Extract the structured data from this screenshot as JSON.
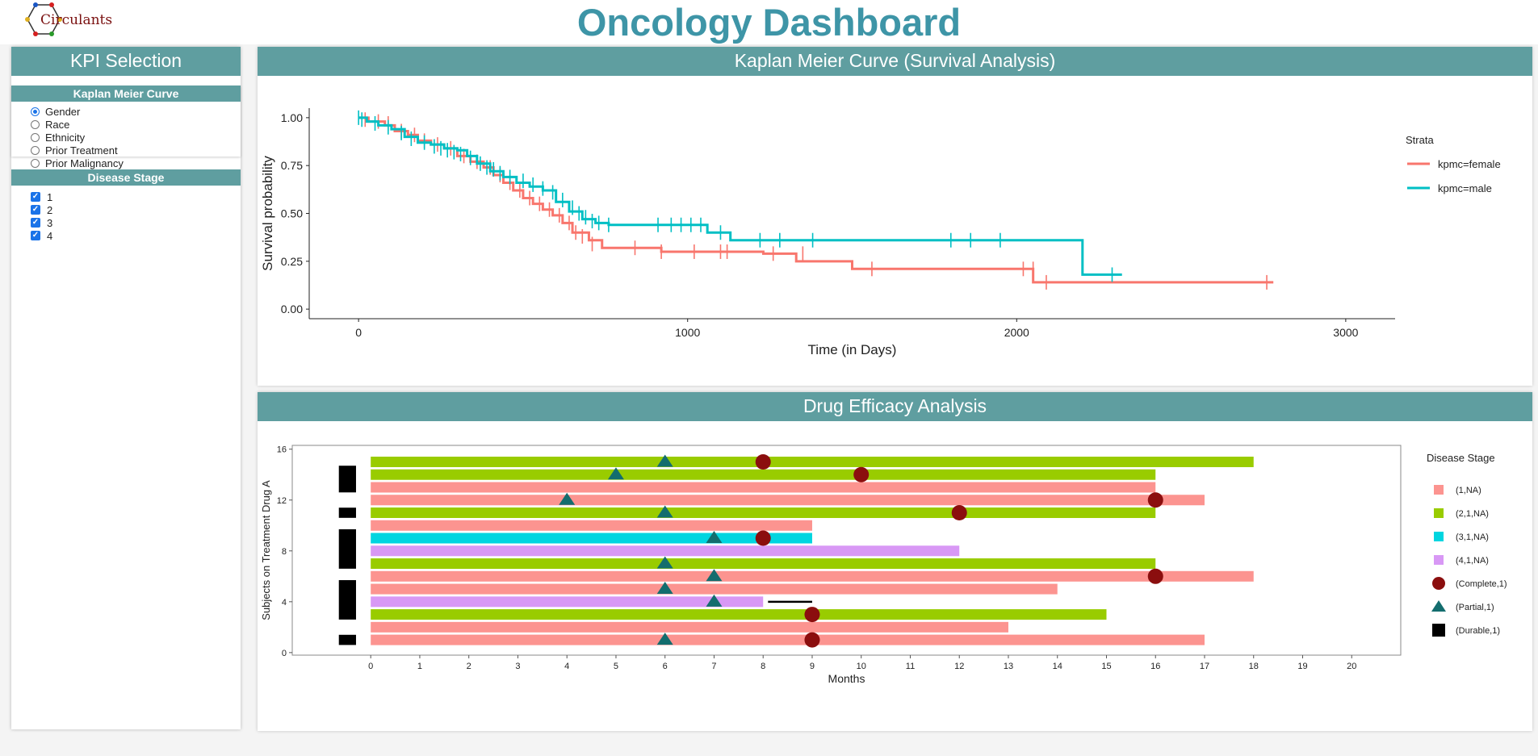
{
  "app": {
    "logo_text": "Circulants",
    "title": "Oncology Dashboard"
  },
  "sidebar": {
    "header": "KPI Selection",
    "km_section": {
      "title": "Kaplan Meier Curve",
      "options": [
        {
          "label": "Gender",
          "selected": true
        },
        {
          "label": "Race",
          "selected": false
        },
        {
          "label": "Ethnicity",
          "selected": false
        },
        {
          "label": "Prior Treatment",
          "selected": false
        },
        {
          "label": "Prior Malignancy",
          "selected": false
        }
      ]
    },
    "stage_section": {
      "title": "Disease Stage",
      "options": [
        {
          "label": "1",
          "checked": true
        },
        {
          "label": "2",
          "checked": true
        },
        {
          "label": "3",
          "checked": true
        },
        {
          "label": "4",
          "checked": true
        }
      ]
    }
  },
  "km_panel": {
    "title": "Kaplan Meier Curve (Survival Analysis)"
  },
  "drug_panel": {
    "title": "Drug Efficacy Analysis"
  },
  "colors": {
    "header_teal": "#5f9ea0",
    "title_teal": "#3e95a7",
    "female": "#f8766d",
    "male": "#00bfc4",
    "stage1": "#fc9490",
    "stage2": "#99cc00",
    "stage3": "#00d5e0",
    "stage4": "#d898f5",
    "complete": "#8b0e0e",
    "partial": "#136d6e",
    "durable": "#000000"
  },
  "chart_data": [
    {
      "type": "line",
      "chart": "km",
      "xlabel": "Time (in Days)",
      "ylabel": "Survival probability",
      "xlim": [
        -150,
        3150
      ],
      "ylim": [
        -0.05,
        1.05
      ],
      "xticks": [
        0,
        1000,
        2000,
        3000
      ],
      "yticks": [
        0.0,
        0.25,
        0.5,
        0.75,
        1.0
      ],
      "ytick_labels": [
        "0.00",
        "0.25",
        "0.50",
        "0.75",
        "1.00"
      ],
      "legend_title": "Strata",
      "legend_position": "right",
      "series": [
        {
          "name": "kpmc=female",
          "color_key": "female",
          "x": [
            0,
            30,
            80,
            110,
            150,
            180,
            220,
            260,
            300,
            340,
            380,
            410,
            440,
            470,
            500,
            530,
            560,
            590,
            620,
            650,
            700,
            740,
            920,
            1000,
            1230,
            1330,
            1500,
            1540,
            2020,
            2050,
            2780
          ],
          "y": [
            1.0,
            0.98,
            0.96,
            0.93,
            0.91,
            0.88,
            0.86,
            0.84,
            0.8,
            0.77,
            0.74,
            0.7,
            0.66,
            0.62,
            0.58,
            0.55,
            0.52,
            0.49,
            0.45,
            0.4,
            0.36,
            0.32,
            0.3,
            0.3,
            0.29,
            0.25,
            0.21,
            0.21,
            0.21,
            0.14,
            0.14
          ],
          "censor_x": [
            20,
            60,
            90,
            130,
            170,
            200,
            240,
            280,
            320,
            360,
            400,
            430,
            460,
            490,
            520,
            550,
            580,
            610,
            640,
            660,
            680,
            710,
            840,
            920,
            1020,
            1100,
            1120,
            1260,
            1350,
            1560,
            2020,
            2050,
            2090,
            2760
          ],
          "censor_y": [
            0.99,
            0.98,
            0.97,
            0.93,
            0.91,
            0.88,
            0.86,
            0.84,
            0.8,
            0.77,
            0.74,
            0.7,
            0.66,
            0.62,
            0.58,
            0.55,
            0.52,
            0.49,
            0.45,
            0.4,
            0.38,
            0.34,
            0.32,
            0.3,
            0.3,
            0.3,
            0.3,
            0.29,
            0.29,
            0.21,
            0.21,
            0.21,
            0.14,
            0.14
          ]
        },
        {
          "name": "kpmc=male",
          "color_key": "male",
          "x": [
            0,
            25,
            60,
            100,
            140,
            180,
            220,
            260,
            300,
            330,
            360,
            400,
            440,
            480,
            520,
            560,
            600,
            640,
            680,
            720,
            760,
            1000,
            1060,
            1130,
            1280,
            1500,
            1800,
            2000,
            2180,
            2200,
            2320
          ],
          "y": [
            1.0,
            0.98,
            0.96,
            0.94,
            0.9,
            0.87,
            0.86,
            0.84,
            0.83,
            0.8,
            0.76,
            0.72,
            0.69,
            0.66,
            0.64,
            0.62,
            0.56,
            0.51,
            0.47,
            0.45,
            0.44,
            0.44,
            0.4,
            0.36,
            0.36,
            0.36,
            0.36,
            0.36,
            0.36,
            0.18,
            0.18
          ],
          "censor_x": [
            0,
            10,
            50,
            90,
            130,
            160,
            200,
            230,
            250,
            270,
            290,
            310,
            340,
            370,
            390,
            410,
            430,
            460,
            500,
            530,
            560,
            590,
            620,
            650,
            670,
            690,
            710,
            730,
            760,
            910,
            950,
            980,
            1010,
            1040,
            1100,
            1220,
            1280,
            1380,
            1800,
            1860,
            1950,
            2290
          ],
          "censor_y": [
            1.0,
            0.99,
            0.97,
            0.95,
            0.92,
            0.89,
            0.87,
            0.85,
            0.84,
            0.83,
            0.82,
            0.81,
            0.79,
            0.76,
            0.74,
            0.73,
            0.71,
            0.69,
            0.67,
            0.65,
            0.63,
            0.61,
            0.57,
            0.53,
            0.5,
            0.48,
            0.46,
            0.45,
            0.44,
            0.44,
            0.44,
            0.44,
            0.44,
            0.44,
            0.4,
            0.36,
            0.36,
            0.36,
            0.36,
            0.36,
            0.36,
            0.18
          ]
        }
      ]
    },
    {
      "type": "bar",
      "chart": "swimmer",
      "xlabel": "Months",
      "ylabel": "Subjects on Treatment Drug A",
      "xlim": [
        -1.6,
        21.0
      ],
      "ylim": [
        -0.2,
        16.3
      ],
      "xticks": [
        0,
        1,
        2,
        3,
        4,
        5,
        6,
        7,
        8,
        9,
        10,
        11,
        12,
        13,
        14,
        15,
        16,
        17,
        18,
        19,
        20
      ],
      "yticks": [
        0,
        4,
        8,
        12,
        16
      ],
      "legend_title": "Disease Stage",
      "legend_position": "right",
      "legend": [
        {
          "label": "(1,NA)",
          "kind": "square",
          "color_key": "stage1"
        },
        {
          "label": "(2,1,NA)",
          "kind": "square",
          "color_key": "stage2"
        },
        {
          "label": "(3,1,NA)",
          "kind": "square",
          "color_key": "stage3"
        },
        {
          "label": "(4,1,NA)",
          "kind": "square",
          "color_key": "stage4"
        },
        {
          "label": "(Complete,1)",
          "kind": "circle",
          "color_key": "complete"
        },
        {
          "label": "(Partial,1)",
          "kind": "triangle",
          "color_key": "partial"
        },
        {
          "label": "(Durable,1)",
          "kind": "rect",
          "color_key": "durable"
        }
      ],
      "subjects": [
        {
          "y": 1,
          "end": 17,
          "stage": "stage1",
          "partial": [
            6
          ],
          "complete": [
            9
          ]
        },
        {
          "y": 2,
          "end": 13,
          "stage": "stage1",
          "partial": [],
          "complete": []
        },
        {
          "y": 3,
          "end": 15,
          "stage": "stage2",
          "partial": [],
          "complete": [
            9
          ]
        },
        {
          "y": 4,
          "end": 8,
          "stage": "stage4",
          "partial": [
            7
          ],
          "complete": [],
          "continuation": [
            8.1,
            9
          ]
        },
        {
          "y": 5,
          "end": 14,
          "stage": "stage1",
          "partial": [
            6
          ],
          "complete": []
        },
        {
          "y": 6,
          "end": 18,
          "stage": "stage1",
          "partial": [
            7
          ],
          "complete": [
            16
          ]
        },
        {
          "y": 7,
          "end": 16,
          "stage": "stage2",
          "partial": [
            6
          ],
          "complete": []
        },
        {
          "y": 8,
          "end": 12,
          "stage": "stage4",
          "partial": [],
          "complete": []
        },
        {
          "y": 9,
          "end": 9,
          "stage": "stage3",
          "partial": [
            7
          ],
          "complete": [
            8
          ]
        },
        {
          "y": 10,
          "end": 9,
          "stage": "stage1",
          "partial": [],
          "complete": []
        },
        {
          "y": 11,
          "end": 16,
          "stage": "stage2",
          "partial": [
            6
          ],
          "complete": [
            12
          ]
        },
        {
          "y": 12,
          "end": 17,
          "stage": "stage1",
          "partial": [
            4
          ],
          "complete": [
            16
          ]
        },
        {
          "y": 13,
          "end": 16,
          "stage": "stage1",
          "partial": [],
          "complete": []
        },
        {
          "y": 14,
          "end": 16,
          "stage": "stage2",
          "partial": [
            5
          ],
          "complete": [
            10
          ]
        },
        {
          "y": 15,
          "end": 18,
          "stage": "stage2",
          "partial": [
            6
          ],
          "complete": [
            8
          ]
        }
      ],
      "durable": [
        {
          "y0": 0.6,
          "y1": 1.4
        },
        {
          "y0": 2.6,
          "y1": 5.7
        },
        {
          "y0": 6.6,
          "y1": 9.7
        },
        {
          "y0": 10.6,
          "y1": 11.4
        },
        {
          "y0": 12.6,
          "y1": 14.7
        }
      ]
    }
  ]
}
